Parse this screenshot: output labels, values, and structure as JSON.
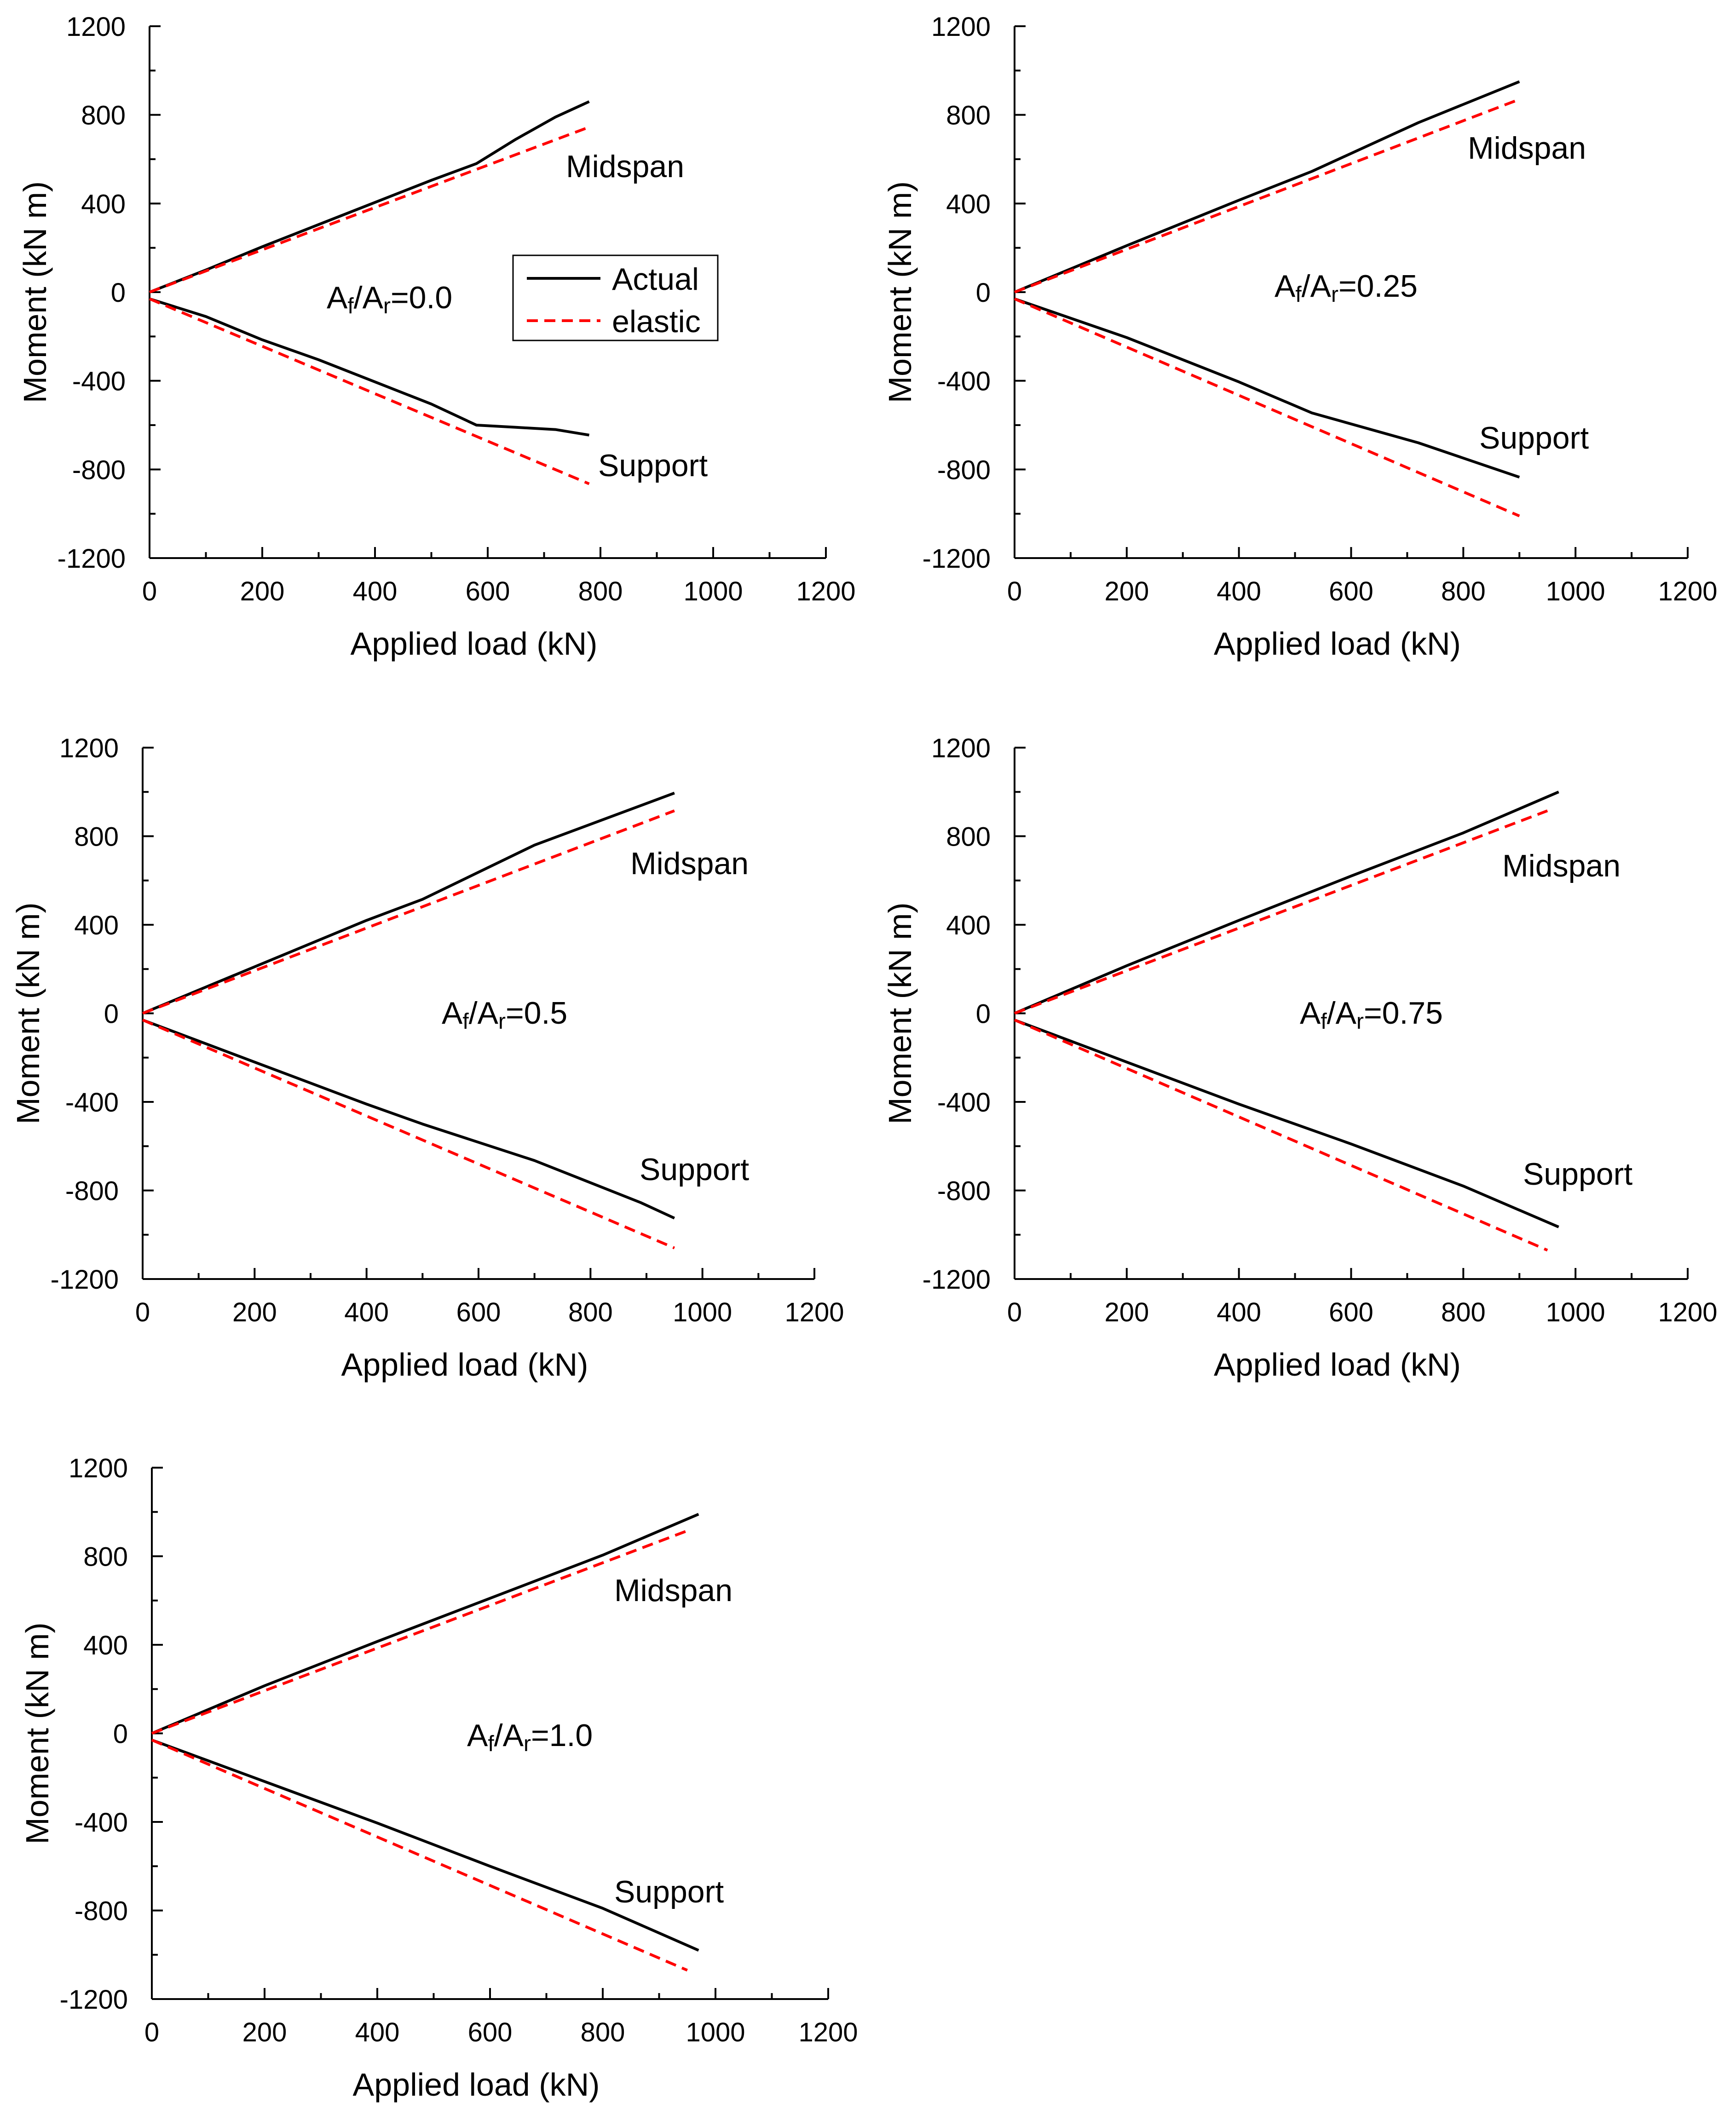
{
  "figure": {
    "legend": {
      "actual_label": "Actual",
      "elastic_label": "elastic"
    },
    "series_colors": {
      "actual": "#000000",
      "elastic": "#ff0000"
    }
  },
  "chart_data": [
    {
      "type": "line",
      "ratio_label": {
        "a1": "A",
        "s1": "f",
        "slash": "/A",
        "s2": "r",
        "value": "=0.0"
      },
      "xlabel": "Applied load (kN)",
      "ylabel": "Moment (kN m)",
      "xlim": [
        0,
        1200
      ],
      "ylim": [
        -1200,
        1200
      ],
      "xticks": [
        "0",
        "200",
        "400",
        "600",
        "800",
        "1000",
        "1200"
      ],
      "yticks": [
        "-1200",
        "-800",
        "-400",
        "0",
        "400",
        "800",
        "1200"
      ],
      "curve_labels": {
        "midspan": "Midspan",
        "support": "Support"
      },
      "has_legend": true,
      "series": [
        {
          "name": "Actual Midspan",
          "style": "solid",
          "points": [
            [
              0,
              0
            ],
            [
              100,
              100
            ],
            [
              200,
              205
            ],
            [
              300,
              305
            ],
            [
              400,
              405
            ],
            [
              500,
              505
            ],
            [
              580,
              580
            ],
            [
              650,
              690
            ],
            [
              720,
              790
            ],
            [
              780,
              860
            ]
          ]
        },
        {
          "name": "Elastic Midspan",
          "style": "dashed",
          "points": [
            [
              0,
              0
            ],
            [
              780,
              745
            ]
          ]
        },
        {
          "name": "Actual Support",
          "style": "solid",
          "points": [
            [
              0,
              -30
            ],
            [
              100,
              -110
            ],
            [
              200,
              -215
            ],
            [
              300,
              -305
            ],
            [
              400,
              -405
            ],
            [
              500,
              -505
            ],
            [
              580,
              -600
            ],
            [
              650,
              -610
            ],
            [
              720,
              -620
            ],
            [
              780,
              -645
            ]
          ]
        },
        {
          "name": "Elastic Support",
          "style": "dashed",
          "points": [
            [
              0,
              -30
            ],
            [
              780,
              -865
            ]
          ]
        }
      ]
    },
    {
      "type": "line",
      "ratio_label": {
        "a1": "A",
        "s1": "f",
        "slash": "/A",
        "s2": "r",
        "value": "=0.25"
      },
      "xlabel": "Applied load (kN)",
      "ylabel": "Moment (kN m)",
      "xlim": [
        0,
        1200
      ],
      "ylim": [
        -1200,
        1200
      ],
      "xticks": [
        "0",
        "200",
        "400",
        "600",
        "800",
        "1000",
        "1200"
      ],
      "yticks": [
        "-1200",
        "-800",
        "-400",
        "0",
        "400",
        "800",
        "1200"
      ],
      "curve_labels": {
        "midspan": "Midspan",
        "support": "Support"
      },
      "has_legend": false,
      "series": [
        {
          "name": "Actual Midspan",
          "style": "solid",
          "points": [
            [
              0,
              0
            ],
            [
              200,
              210
            ],
            [
              400,
              415
            ],
            [
              530,
              545
            ],
            [
              720,
              765
            ],
            [
              900,
              950
            ]
          ]
        },
        {
          "name": "Elastic Midspan",
          "style": "dashed",
          "points": [
            [
              0,
              0
            ],
            [
              900,
              870
            ]
          ]
        },
        {
          "name": "Actual Support",
          "style": "solid",
          "points": [
            [
              0,
              -30
            ],
            [
              200,
              -205
            ],
            [
              400,
              -405
            ],
            [
              530,
              -545
            ],
            [
              720,
              -680
            ],
            [
              900,
              -835
            ]
          ]
        },
        {
          "name": "Elastic Support",
          "style": "dashed",
          "points": [
            [
              0,
              -30
            ],
            [
              900,
              -1010
            ]
          ]
        }
      ]
    },
    {
      "type": "line",
      "ratio_label": {
        "a1": "A",
        "s1": "f",
        "slash": "/A",
        "s2": "r",
        "value": "=0.5"
      },
      "xlabel": "Applied load (kN)",
      "ylabel": "Moment (kN m)",
      "xlim": [
        0,
        1200
      ],
      "ylim": [
        -1200,
        1200
      ],
      "xticks": [
        "0",
        "200",
        "400",
        "600",
        "800",
        "1000",
        "1200"
      ],
      "yticks": [
        "-1200",
        "-800",
        "-400",
        "0",
        "400",
        "800",
        "1200"
      ],
      "curve_labels": {
        "midspan": "Midspan",
        "support": "Support"
      },
      "has_legend": false,
      "series": [
        {
          "name": "Actual Midspan",
          "style": "solid",
          "points": [
            [
              0,
              0
            ],
            [
              200,
              210
            ],
            [
              400,
              420
            ],
            [
              500,
              515
            ],
            [
              700,
              760
            ],
            [
              950,
              995
            ]
          ]
        },
        {
          "name": "Elastic Midspan",
          "style": "dashed",
          "points": [
            [
              0,
              0
            ],
            [
              950,
              915
            ]
          ]
        },
        {
          "name": "Actual Support",
          "style": "solid",
          "points": [
            [
              0,
              -30
            ],
            [
              200,
              -220
            ],
            [
              400,
              -410
            ],
            [
              500,
              -500
            ],
            [
              700,
              -665
            ],
            [
              890,
              -855
            ],
            [
              950,
              -925
            ]
          ]
        },
        {
          "name": "Elastic Support",
          "style": "dashed",
          "points": [
            [
              0,
              -30
            ],
            [
              950,
              -1060
            ]
          ]
        }
      ]
    },
    {
      "type": "line",
      "ratio_label": {
        "a1": "A",
        "s1": "f",
        "slash": "/A",
        "s2": "r",
        "value": "=0.75"
      },
      "xlabel": "Applied load (kN)",
      "ylabel": "Moment (kN m)",
      "xlim": [
        0,
        1200
      ],
      "ylim": [
        -1200,
        1200
      ],
      "xticks": [
        "0",
        "200",
        "400",
        "600",
        "800",
        "1000",
        "1200"
      ],
      "yticks": [
        "-1200",
        "-800",
        "-400",
        "0",
        "400",
        "800",
        "1200"
      ],
      "curve_labels": {
        "midspan": "Midspan",
        "support": "Support"
      },
      "has_legend": false,
      "series": [
        {
          "name": "Actual Midspan",
          "style": "solid",
          "points": [
            [
              0,
              0
            ],
            [
              200,
              215
            ],
            [
              400,
              420
            ],
            [
              600,
              620
            ],
            [
              800,
              815
            ],
            [
              970,
              1000
            ]
          ]
        },
        {
          "name": "Elastic Midspan",
          "style": "dashed",
          "points": [
            [
              0,
              0
            ],
            [
              950,
              915
            ]
          ]
        },
        {
          "name": "Actual Support",
          "style": "solid",
          "points": [
            [
              0,
              -30
            ],
            [
              200,
              -220
            ],
            [
              400,
              -410
            ],
            [
              600,
              -590
            ],
            [
              800,
              -780
            ],
            [
              970,
              -965
            ]
          ]
        },
        {
          "name": "Elastic Support",
          "style": "dashed",
          "points": [
            [
              0,
              -30
            ],
            [
              950,
              -1070
            ]
          ]
        }
      ]
    },
    {
      "type": "line",
      "ratio_label": {
        "a1": "A",
        "s1": "f",
        "slash": "/A",
        "s2": "r",
        "value": "=1.0"
      },
      "xlabel": "Applied load (kN)",
      "ylabel": "Moment (kN m)",
      "xlim": [
        0,
        1200
      ],
      "ylim": [
        -1200,
        1200
      ],
      "xticks": [
        "0",
        "200",
        "400",
        "600",
        "800",
        "1000",
        "1200"
      ],
      "yticks": [
        "-1200",
        "-800",
        "-400",
        "0",
        "400",
        "800",
        "1200"
      ],
      "curve_labels": {
        "midspan": "Midspan",
        "support": "Support"
      },
      "has_legend": false,
      "series": [
        {
          "name": "Actual Midspan",
          "style": "solid",
          "points": [
            [
              0,
              0
            ],
            [
              200,
              215
            ],
            [
              400,
              415
            ],
            [
              600,
              610
            ],
            [
              800,
              805
            ],
            [
              970,
              990
            ]
          ]
        },
        {
          "name": "Elastic Midspan",
          "style": "dashed",
          "points": [
            [
              0,
              0
            ],
            [
              950,
              915
            ]
          ]
        },
        {
          "name": "Actual Support",
          "style": "solid",
          "points": [
            [
              0,
              -30
            ],
            [
              160,
              -180
            ],
            [
              400,
              -405
            ],
            [
              600,
              -600
            ],
            [
              800,
              -790
            ],
            [
              970,
              -980
            ]
          ]
        },
        {
          "name": "Elastic Support",
          "style": "dashed",
          "points": [
            [
              0,
              -30
            ],
            [
              950,
              -1070
            ]
          ]
        }
      ]
    }
  ]
}
